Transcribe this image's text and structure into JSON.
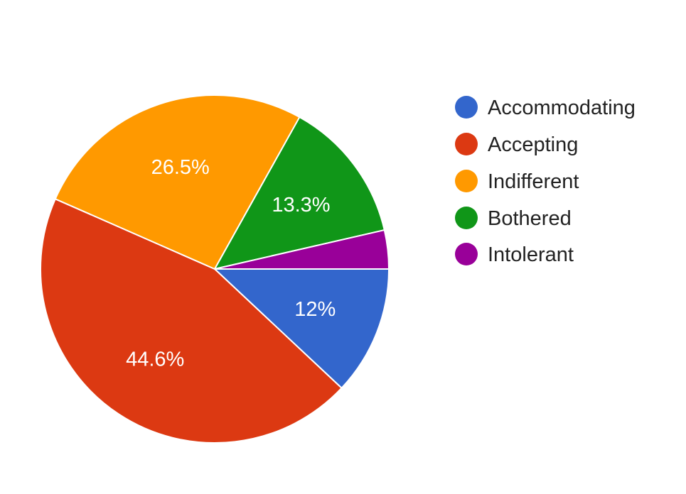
{
  "chart_data": {
    "type": "pie",
    "title": "",
    "legend_position": "right",
    "slices": [
      {
        "label": "Accommodating",
        "value": 12.0,
        "display": "12%",
        "color": "#3366cc"
      },
      {
        "label": "Accepting",
        "value": 44.6,
        "display": "44.6%",
        "color": "#dc3912"
      },
      {
        "label": "Indifferent",
        "value": 26.5,
        "display": "26.5%",
        "color": "#ff9900"
      },
      {
        "label": "Bothered",
        "value": 13.3,
        "display": "13.3%",
        "color": "#109618"
      },
      {
        "label": "Intolerant",
        "value": 3.6,
        "display": "",
        "color": "#990099"
      }
    ]
  }
}
